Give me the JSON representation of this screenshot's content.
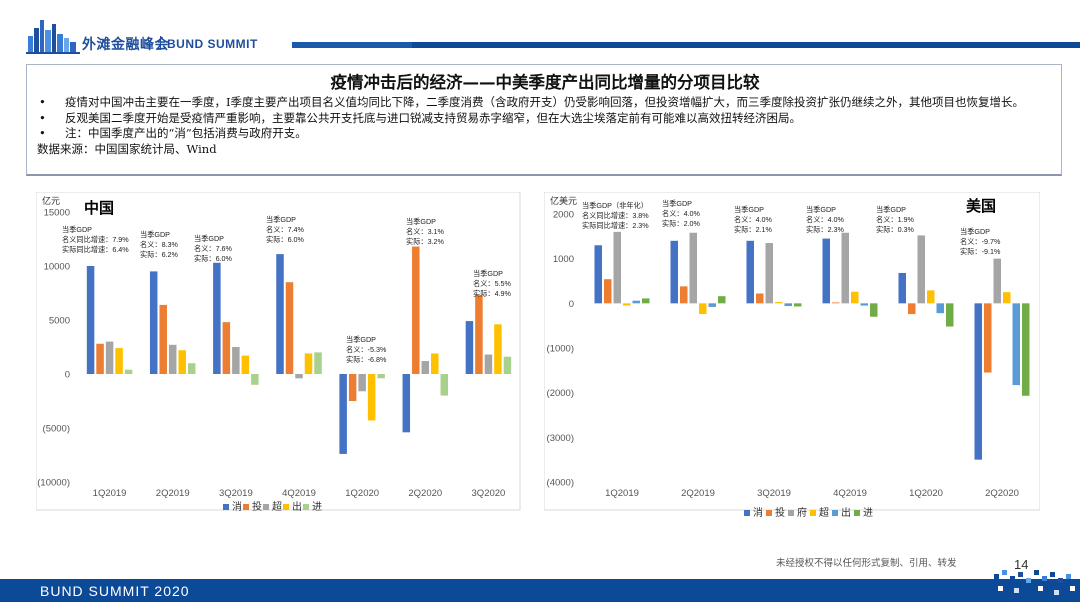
{
  "header": {
    "logo_cn": "外滩金融峰会",
    "logo_en": "BUND SUMMIT"
  },
  "slide": {
    "title": "疫情冲击后的经济——中美季度产出同比增量的分项目比较",
    "bullets": [
      "疫情对中国冲击主要在一季度，I季度主要产出项目名义值均同比下降，二季度消费（含政府开支）仍受影响回落，但投资增幅扩大，而三季度除投资扩张仍继续之外，其他项目也恢复增长。",
      "反观美国二季度开始是受疫情严重影响，主要靠公共开支托底与进口锐减支持贸易赤字缩窄，但在大选尘埃落定前有可能难以高效扭转经济困局。",
      "注：中国季度产出的“消”包括消费与政府开支。"
    ],
    "bullet_marker": "•",
    "source": "数据来源：中国国家统计局、Wind"
  },
  "footer": {
    "copyright": "未经授权不得以任何形式复制、引用、转发",
    "page_number": "14",
    "bar_text": "BUND SUMMIT 2020"
  },
  "colors": {
    "brand_blue": "#0c4a98",
    "series": [
      "#4472c4",
      "#ed7d31",
      "#a5a5a5",
      "#ffc000",
      "#5b9bd5",
      "#70ad47"
    ]
  },
  "chart_data": [
    {
      "type": "bar",
      "title": "中国",
      "unit_label": "亿元",
      "categories": [
        "1Q2019",
        "2Q2019",
        "3Q2019",
        "4Q2019",
        "1Q2020",
        "2Q2020",
        "3Q2020"
      ],
      "ylim": [
        -10000,
        15000
      ],
      "yticks": [
        15000,
        10000,
        5000,
        0,
        -5000,
        -10000
      ],
      "ytick_labels": [
        "15000",
        "10000",
        "5000",
        "0",
        "(5000)",
        "(10000)"
      ],
      "series": [
        {
          "name": "消",
          "color": "#4472c4",
          "values": [
            10000,
            9500,
            10300,
            11100,
            -7400,
            -5400,
            4900
          ]
        },
        {
          "name": "投",
          "color": "#ed7d31",
          "values": [
            2800,
            6400,
            4800,
            8500,
            -2500,
            11800,
            7300
          ]
        },
        {
          "name": "超",
          "color": "#a5a5a5",
          "values": [
            3000,
            2700,
            2500,
            -400,
            -1600,
            1200,
            1800
          ]
        },
        {
          "name": "出",
          "color": "#ffc000",
          "values": [
            2400,
            2200,
            1700,
            1900,
            -4300,
            1900,
            4600
          ]
        },
        {
          "name": "进",
          "color": "#a9d18e",
          "values": [
            400,
            1000,
            -1000,
            2000,
            -400,
            -2000,
            1600
          ]
        }
      ],
      "annotations": [
        {
          "category": "1Q2019",
          "lines": [
            "当季GDP",
            "名义同比增速：7.9%",
            "实际同比增速：6.4%"
          ]
        },
        {
          "category": "2Q2019",
          "lines": [
            "当季GDP",
            "名义：8.3%",
            "实际：6.2%"
          ]
        },
        {
          "category": "3Q2019",
          "lines": [
            "当季GDP",
            "名义：7.6%",
            "实际：6.0%"
          ]
        },
        {
          "category": "4Q2019",
          "lines": [
            "当季GDP",
            "名义：7.4%",
            "实际：6.0%"
          ]
        },
        {
          "category": "1Q2020",
          "lines": [
            "当季GDP",
            "名义：-5.3%",
            "实际：-6.8%"
          ]
        },
        {
          "category": "2Q2020",
          "lines": [
            "当季GDP",
            "名义：3.1%",
            "实际：3.2%"
          ]
        },
        {
          "category": "3Q2020",
          "lines": [
            "当季GDP",
            "名义：5.5%",
            "实际：4.9%"
          ]
        }
      ],
      "grid": false,
      "legend": "bottom"
    },
    {
      "type": "bar",
      "title": "美国",
      "unit_label": "亿美元",
      "categories": [
        "1Q2019",
        "2Q2019",
        "3Q2019",
        "4Q2019",
        "1Q2020",
        "2Q2020"
      ],
      "ylim": [
        -4000,
        2000
      ],
      "yticks": [
        2000,
        1000,
        0,
        -1000,
        -2000,
        -3000,
        -4000
      ],
      "ytick_labels": [
        "2000",
        "1000",
        "0",
        "(1000)",
        "(2000)",
        "(3000)",
        "(4000)"
      ],
      "series": [
        {
          "name": "消",
          "color": "#4472c4",
          "values": [
            1300,
            1400,
            1400,
            1450,
            680,
            -3500
          ]
        },
        {
          "name": "投",
          "color": "#ed7d31",
          "values": [
            540,
            380,
            220,
            20,
            -240,
            -1550
          ]
        },
        {
          "name": "府",
          "color": "#a5a5a5",
          "values": [
            1600,
            1580,
            1350,
            1580,
            1520,
            1000
          ]
        },
        {
          "name": "超",
          "color": "#ffc000",
          "values": [
            -50,
            -240,
            30,
            260,
            290,
            250
          ]
        },
        {
          "name": "出",
          "color": "#5b9bd5",
          "values": [
            60,
            -80,
            -60,
            -50,
            -220,
            -1830
          ]
        },
        {
          "name": "进",
          "color": "#70ad47",
          "values": [
            110,
            160,
            -70,
            -300,
            -520,
            -2070
          ]
        }
      ],
      "annotations": [
        {
          "category": "1Q2019",
          "lines": [
            "当季GDP（非年化）",
            "名义同比增速：3.8%",
            "实际同比增速：2.3%"
          ]
        },
        {
          "category": "2Q2019",
          "lines": [
            "当季GDP",
            "名义：4.0%",
            "实际：2.0%"
          ]
        },
        {
          "category": "3Q2019",
          "lines": [
            "当季GDP",
            "名义：4.0%",
            "实际：2.1%"
          ]
        },
        {
          "category": "4Q2019",
          "lines": [
            "当季GDP",
            "名义：4.0%",
            "实际：2.3%"
          ]
        },
        {
          "category": "1Q2020",
          "lines": [
            "当季GDP",
            "名义：1.9%",
            "实际：0.3%"
          ]
        },
        {
          "category": "2Q2020",
          "lines": [
            "当季GDP",
            "名义：-9.7%",
            "实际：-9.1%"
          ]
        }
      ],
      "grid": false,
      "legend": "bottom"
    }
  ]
}
